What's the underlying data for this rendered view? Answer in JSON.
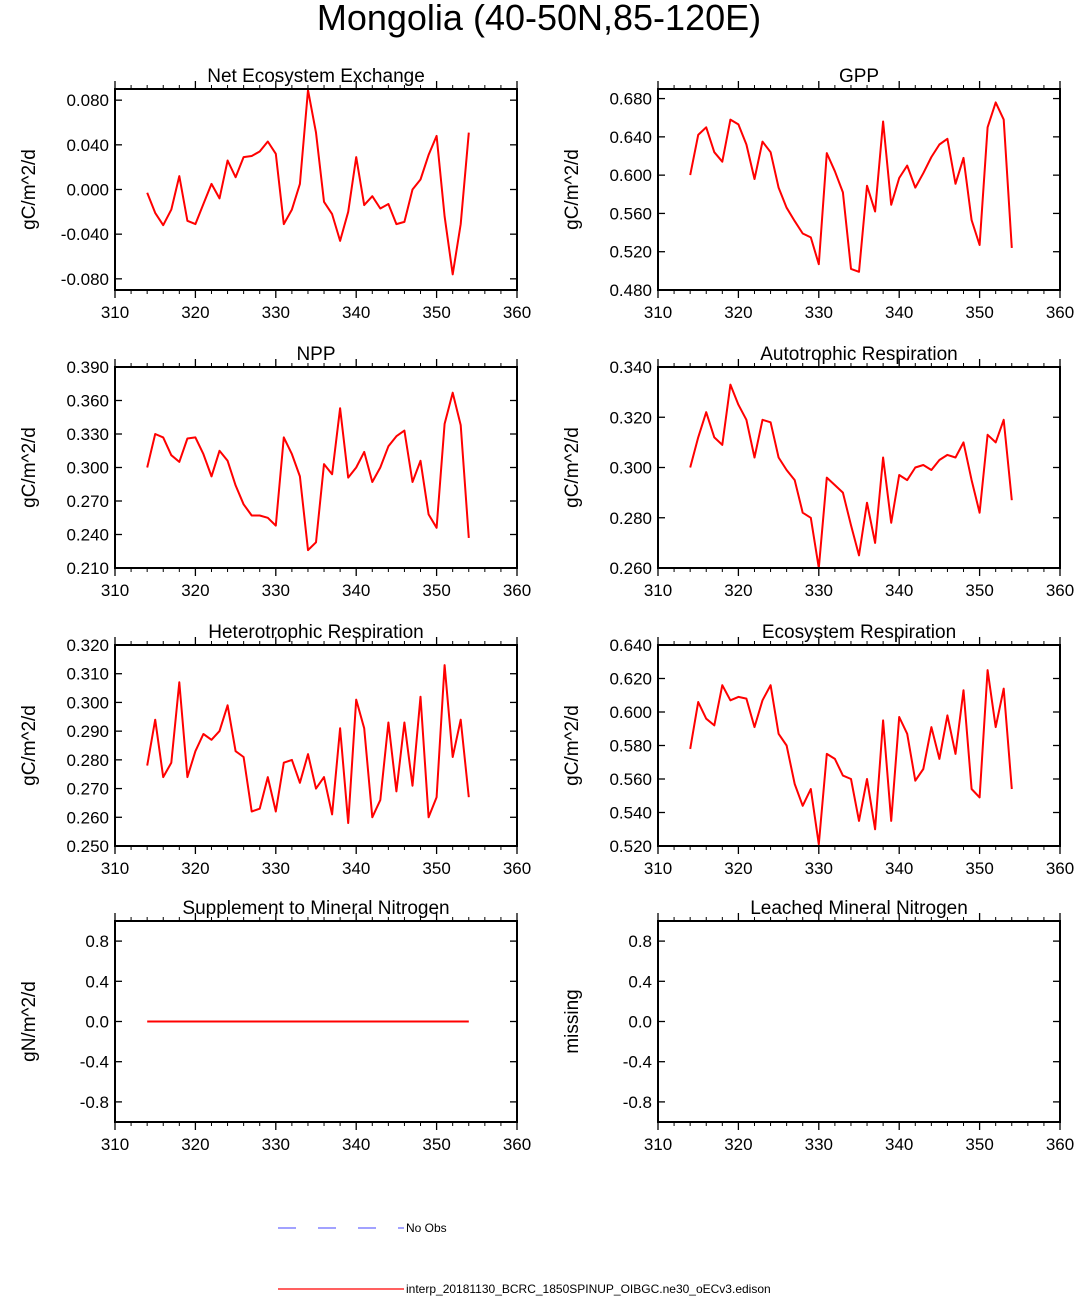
{
  "page": {
    "title": "Mongolia (40-50N,85-120E)"
  },
  "legend": {
    "obs_label": "No Obs",
    "model_label": "interp_20181130_BCRC_1850SPINUP_OIBGC.ne30_oECv3.edison",
    "obs_color": "#6b6bff",
    "model_color": "#ff0000"
  },
  "chart_data": [
    {
      "type": "line",
      "title": "Net Ecosystem Exchange",
      "ylabel": "gC/m^2/d",
      "xlim": [
        310,
        360
      ],
      "ylim": [
        -0.09,
        0.09
      ],
      "xticks": [
        310,
        320,
        330,
        340,
        350,
        360
      ],
      "xtick_labels": [
        "310",
        "320",
        "330",
        "340",
        "350",
        "360"
      ],
      "yticks": [
        -0.08,
        -0.04,
        0.0,
        0.04,
        0.08
      ],
      "ytick_labels": [
        "-0.080",
        "-0.040",
        "0.000",
        "0.040",
        "0.080"
      ],
      "series": [
        {
          "name": "interp_20181130_BCRC_1850SPINUP_OIBGC.ne30_oECv3.edison",
          "color": "#ff0000",
          "x": [
            314,
            315,
            316,
            317,
            318,
            319,
            320,
            321,
            322,
            323,
            324,
            325,
            326,
            327,
            328,
            329,
            330,
            331,
            332,
            333,
            334,
            335,
            336,
            337,
            338,
            339,
            340,
            341,
            342,
            343,
            344,
            345,
            346,
            347,
            348,
            349,
            350,
            351,
            352,
            353,
            354
          ],
          "values": [
            -0.003,
            -0.021,
            -0.032,
            -0.018,
            0.012,
            -0.028,
            -0.031,
            -0.013,
            0.005,
            -0.008,
            0.026,
            0.011,
            0.029,
            0.03,
            0.034,
            0.043,
            0.032,
            -0.031,
            -0.018,
            0.005,
            0.089,
            0.051,
            -0.011,
            -0.022,
            -0.046,
            -0.02,
            0.029,
            -0.014,
            -0.006,
            -0.017,
            -0.013,
            -0.031,
            -0.029,
            0.0,
            0.009,
            0.031,
            0.048,
            -0.024,
            -0.076,
            -0.031,
            0.051
          ]
        }
      ]
    },
    {
      "type": "line",
      "title": "GPP",
      "ylabel": "gC/m^2/d",
      "xlim": [
        310,
        360
      ],
      "ylim": [
        0.48,
        0.69
      ],
      "xticks": [
        310,
        320,
        330,
        340,
        350,
        360
      ],
      "xtick_labels": [
        "310",
        "320",
        "330",
        "340",
        "350",
        "360"
      ],
      "yticks": [
        0.48,
        0.52,
        0.56,
        0.6,
        0.64,
        0.68
      ],
      "ytick_labels": [
        "0.480",
        "0.520",
        "0.560",
        "0.600",
        "0.640",
        "0.680"
      ],
      "series": [
        {
          "name": "interp_20181130_BCRC_1850SPINUP_OIBGC.ne30_oECv3.edison",
          "color": "#ff0000",
          "x": [
            314,
            315,
            316,
            317,
            318,
            319,
            320,
            321,
            322,
            323,
            324,
            325,
            326,
            327,
            328,
            329,
            330,
            331,
            332,
            333,
            334,
            335,
            336,
            337,
            338,
            339,
            340,
            341,
            342,
            343,
            344,
            345,
            346,
            347,
            348,
            349,
            350,
            351,
            352,
            353,
            354
          ],
          "values": [
            0.6,
            0.642,
            0.65,
            0.624,
            0.614,
            0.658,
            0.653,
            0.632,
            0.596,
            0.635,
            0.624,
            0.587,
            0.566,
            0.552,
            0.539,
            0.535,
            0.507,
            0.623,
            0.604,
            0.582,
            0.502,
            0.499,
            0.589,
            0.562,
            0.656,
            0.569,
            0.597,
            0.61,
            0.587,
            0.602,
            0.619,
            0.632,
            0.638,
            0.591,
            0.618,
            0.553,
            0.527,
            0.65,
            0.676,
            0.658,
            0.524
          ]
        }
      ]
    },
    {
      "type": "line",
      "title": "NPP",
      "ylabel": "gC/m^2/d",
      "xlim": [
        310,
        360
      ],
      "ylim": [
        0.21,
        0.39
      ],
      "xticks": [
        310,
        320,
        330,
        340,
        350,
        360
      ],
      "xtick_labels": [
        "310",
        "320",
        "330",
        "340",
        "350",
        "360"
      ],
      "yticks": [
        0.21,
        0.24,
        0.27,
        0.3,
        0.33,
        0.36,
        0.39
      ],
      "ytick_labels": [
        "0.210",
        "0.240",
        "0.270",
        "0.300",
        "0.330",
        "0.360",
        "0.390"
      ],
      "series": [
        {
          "name": "interp_20181130_BCRC_1850SPINUP_OIBGC.ne30_oECv3.edison",
          "color": "#ff0000",
          "x": [
            314,
            315,
            316,
            317,
            318,
            319,
            320,
            321,
            322,
            323,
            324,
            325,
            326,
            327,
            328,
            329,
            330,
            331,
            332,
            333,
            334,
            335,
            336,
            337,
            338,
            339,
            340,
            341,
            342,
            343,
            344,
            345,
            346,
            347,
            348,
            349,
            350,
            351,
            352,
            353,
            354
          ],
          "values": [
            0.3,
            0.33,
            0.327,
            0.311,
            0.305,
            0.326,
            0.327,
            0.312,
            0.292,
            0.315,
            0.306,
            0.284,
            0.267,
            0.257,
            0.257,
            0.255,
            0.248,
            0.327,
            0.312,
            0.292,
            0.226,
            0.233,
            0.303,
            0.294,
            0.353,
            0.291,
            0.3,
            0.314,
            0.287,
            0.3,
            0.319,
            0.328,
            0.333,
            0.287,
            0.306,
            0.258,
            0.246,
            0.339,
            0.367,
            0.338,
            0.237
          ]
        }
      ]
    },
    {
      "type": "line",
      "title": "Autotrophic Respiration",
      "ylabel": "gC/m^2/d",
      "xlim": [
        310,
        360
      ],
      "ylim": [
        0.26,
        0.34
      ],
      "xticks": [
        310,
        320,
        330,
        340,
        350,
        360
      ],
      "xtick_labels": [
        "310",
        "320",
        "330",
        "340",
        "350",
        "360"
      ],
      "yticks": [
        0.26,
        0.28,
        0.3,
        0.32,
        0.34
      ],
      "ytick_labels": [
        "0.260",
        "0.280",
        "0.300",
        "0.320",
        "0.340"
      ],
      "series": [
        {
          "name": "interp_20181130_BCRC_1850SPINUP_OIBGC.ne30_oECv3.edison",
          "color": "#ff0000",
          "x": [
            314,
            315,
            316,
            317,
            318,
            319,
            320,
            321,
            322,
            323,
            324,
            325,
            326,
            327,
            328,
            329,
            330,
            331,
            332,
            333,
            334,
            335,
            336,
            337,
            338,
            339,
            340,
            341,
            342,
            343,
            344,
            345,
            346,
            347,
            348,
            349,
            350,
            351,
            352,
            353,
            354
          ],
          "values": [
            0.3,
            0.312,
            0.322,
            0.312,
            0.309,
            0.333,
            0.325,
            0.319,
            0.304,
            0.319,
            0.318,
            0.304,
            0.299,
            0.295,
            0.282,
            0.28,
            0.26,
            0.296,
            0.293,
            0.29,
            0.277,
            0.265,
            0.286,
            0.27,
            0.304,
            0.278,
            0.297,
            0.295,
            0.3,
            0.301,
            0.299,
            0.303,
            0.305,
            0.304,
            0.31,
            0.295,
            0.282,
            0.313,
            0.31,
            0.319,
            0.287
          ]
        }
      ]
    },
    {
      "type": "line",
      "title": "Heterotrophic Respiration",
      "ylabel": "gC/m^2/d",
      "xlim": [
        310,
        360
      ],
      "ylim": [
        0.25,
        0.32
      ],
      "xticks": [
        310,
        320,
        330,
        340,
        350,
        360
      ],
      "xtick_labels": [
        "310",
        "320",
        "330",
        "340",
        "350",
        "360"
      ],
      "yticks": [
        0.25,
        0.26,
        0.27,
        0.28,
        0.29,
        0.3,
        0.31,
        0.32
      ],
      "ytick_labels": [
        "0.250",
        "0.260",
        "0.270",
        "0.280",
        "0.290",
        "0.300",
        "0.310",
        "0.320"
      ],
      "series": [
        {
          "name": "interp_20181130_BCRC_1850SPINUP_OIBGC.ne30_oECv3.edison",
          "color": "#ff0000",
          "x": [
            314,
            315,
            316,
            317,
            318,
            319,
            320,
            321,
            322,
            323,
            324,
            325,
            326,
            327,
            328,
            329,
            330,
            331,
            332,
            333,
            334,
            335,
            336,
            337,
            338,
            339,
            340,
            341,
            342,
            343,
            344,
            345,
            346,
            347,
            348,
            349,
            350,
            351,
            352,
            353,
            354
          ],
          "values": [
            0.278,
            0.294,
            0.274,
            0.279,
            0.307,
            0.274,
            0.283,
            0.289,
            0.287,
            0.29,
            0.299,
            0.283,
            0.281,
            0.262,
            0.263,
            0.274,
            0.262,
            0.279,
            0.28,
            0.272,
            0.282,
            0.27,
            0.274,
            0.261,
            0.291,
            0.258,
            0.301,
            0.291,
            0.26,
            0.266,
            0.293,
            0.269,
            0.293,
            0.271,
            0.302,
            0.26,
            0.267,
            0.313,
            0.281,
            0.294,
            0.267
          ]
        }
      ]
    },
    {
      "type": "line",
      "title": "Ecosystem Respiration",
      "ylabel": "gC/m^2/d",
      "xlim": [
        310,
        360
      ],
      "ylim": [
        0.52,
        0.64
      ],
      "xticks": [
        310,
        320,
        330,
        340,
        350,
        360
      ],
      "xtick_labels": [
        "310",
        "320",
        "330",
        "340",
        "350",
        "360"
      ],
      "yticks": [
        0.52,
        0.54,
        0.56,
        0.58,
        0.6,
        0.62,
        0.64
      ],
      "ytick_labels": [
        "0.520",
        "0.540",
        "0.560",
        "0.580",
        "0.600",
        "0.620",
        "0.640"
      ],
      "series": [
        {
          "name": "interp_20181130_BCRC_1850SPINUP_OIBGC.ne30_oECv3.edison",
          "color": "#ff0000",
          "x": [
            314,
            315,
            316,
            317,
            318,
            319,
            320,
            321,
            322,
            323,
            324,
            325,
            326,
            327,
            328,
            329,
            330,
            331,
            332,
            333,
            334,
            335,
            336,
            337,
            338,
            339,
            340,
            341,
            342,
            343,
            344,
            345,
            346,
            347,
            348,
            349,
            350,
            351,
            352,
            353,
            354
          ],
          "values": [
            0.578,
            0.606,
            0.596,
            0.592,
            0.616,
            0.607,
            0.609,
            0.608,
            0.591,
            0.607,
            0.616,
            0.587,
            0.58,
            0.557,
            0.544,
            0.554,
            0.521,
            0.575,
            0.572,
            0.562,
            0.56,
            0.535,
            0.56,
            0.53,
            0.595,
            0.535,
            0.597,
            0.587,
            0.559,
            0.566,
            0.591,
            0.572,
            0.598,
            0.575,
            0.613,
            0.554,
            0.549,
            0.625,
            0.591,
            0.614,
            0.554
          ]
        }
      ]
    },
    {
      "type": "line",
      "title": "Supplement to Mineral Nitrogen",
      "ylabel": "gN/m^2/d",
      "xlim": [
        310,
        360
      ],
      "ylim": [
        -1,
        1
      ],
      "xticks": [
        310,
        320,
        330,
        340,
        350,
        360
      ],
      "xtick_labels": [
        "310",
        "320",
        "330",
        "340",
        "350",
        "360"
      ],
      "yticks": [
        -0.8,
        -0.4,
        0.0,
        0.4,
        0.8
      ],
      "ytick_labels": [
        "-0.8",
        "-0.4",
        "0.0",
        "0.4",
        "0.8"
      ],
      "series": [
        {
          "name": "interp_20181130_BCRC_1850SPINUP_OIBGC.ne30_oECv3.edison",
          "color": "#ff0000",
          "x": [
            314,
            354
          ],
          "values": [
            0.0,
            0.0
          ]
        }
      ]
    },
    {
      "type": "line",
      "title": "Leached Mineral Nitrogen",
      "ylabel": "missing",
      "xlim": [
        310,
        360
      ],
      "ylim": [
        -1,
        1
      ],
      "xticks": [
        310,
        320,
        330,
        340,
        350,
        360
      ],
      "xtick_labels": [
        "310",
        "320",
        "330",
        "340",
        "350",
        "360"
      ],
      "yticks": [
        -0.8,
        -0.4,
        0.0,
        0.4,
        0.8
      ],
      "ytick_labels": [
        "-0.8",
        "-0.4",
        "0.0",
        "0.4",
        "0.8"
      ],
      "series": []
    }
  ]
}
